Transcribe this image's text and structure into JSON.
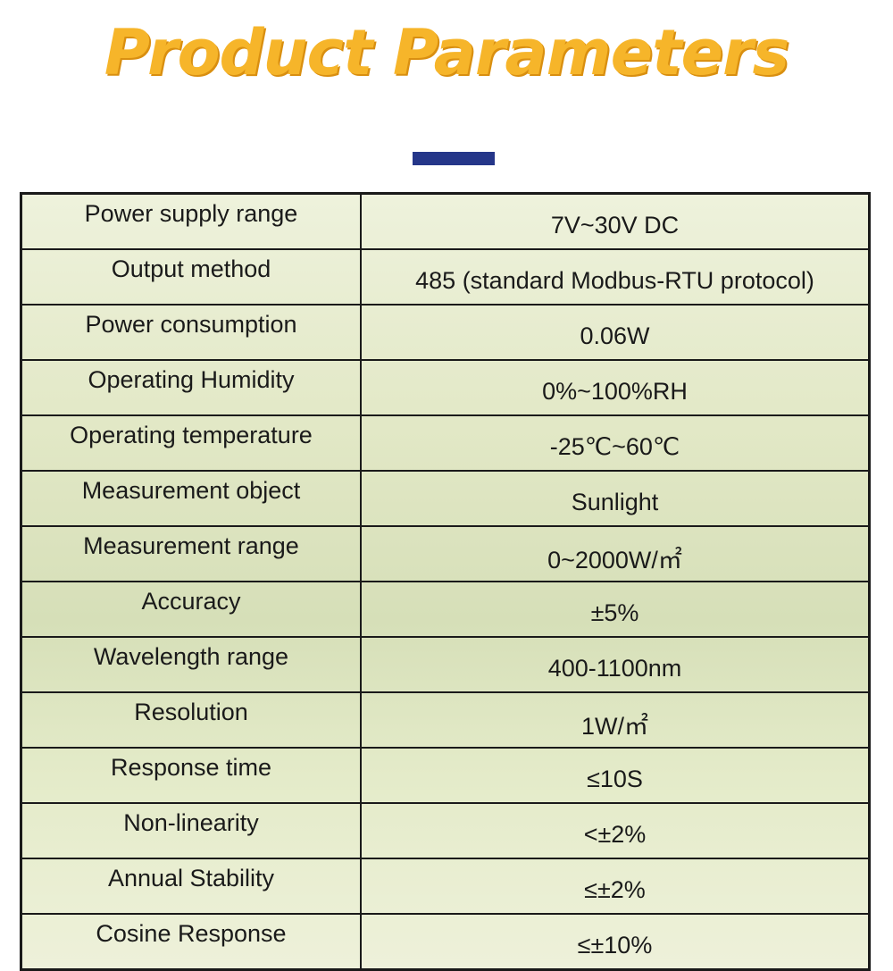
{
  "header": {
    "title": "Product Parameters"
  },
  "table": {
    "rows": [
      [
        "Power supply range",
        "7V~30V DC"
      ],
      [
        "Output method",
        "485 (standard Modbus-RTU protocol)"
      ],
      [
        "Power consumption",
        "0.06W"
      ],
      [
        "Operating Humidity",
        "0%~100%RH"
      ],
      [
        "Operating temperature",
        "-25℃~60℃"
      ],
      [
        "Measurement object",
        "Sunlight"
      ],
      [
        "Measurement range",
        "0~2000W/㎡"
      ],
      [
        "Accuracy",
        "±5%"
      ],
      [
        "Wavelength range",
        "400-1100nm"
      ],
      [
        "Resolution",
        "1W/㎡"
      ],
      [
        "Response time",
        "≤10S"
      ],
      [
        "Non-linearity",
        "<±2%"
      ],
      [
        "Annual Stability",
        "≤±2%"
      ],
      [
        "Cosine Response",
        "≤±10%"
      ]
    ]
  }
}
